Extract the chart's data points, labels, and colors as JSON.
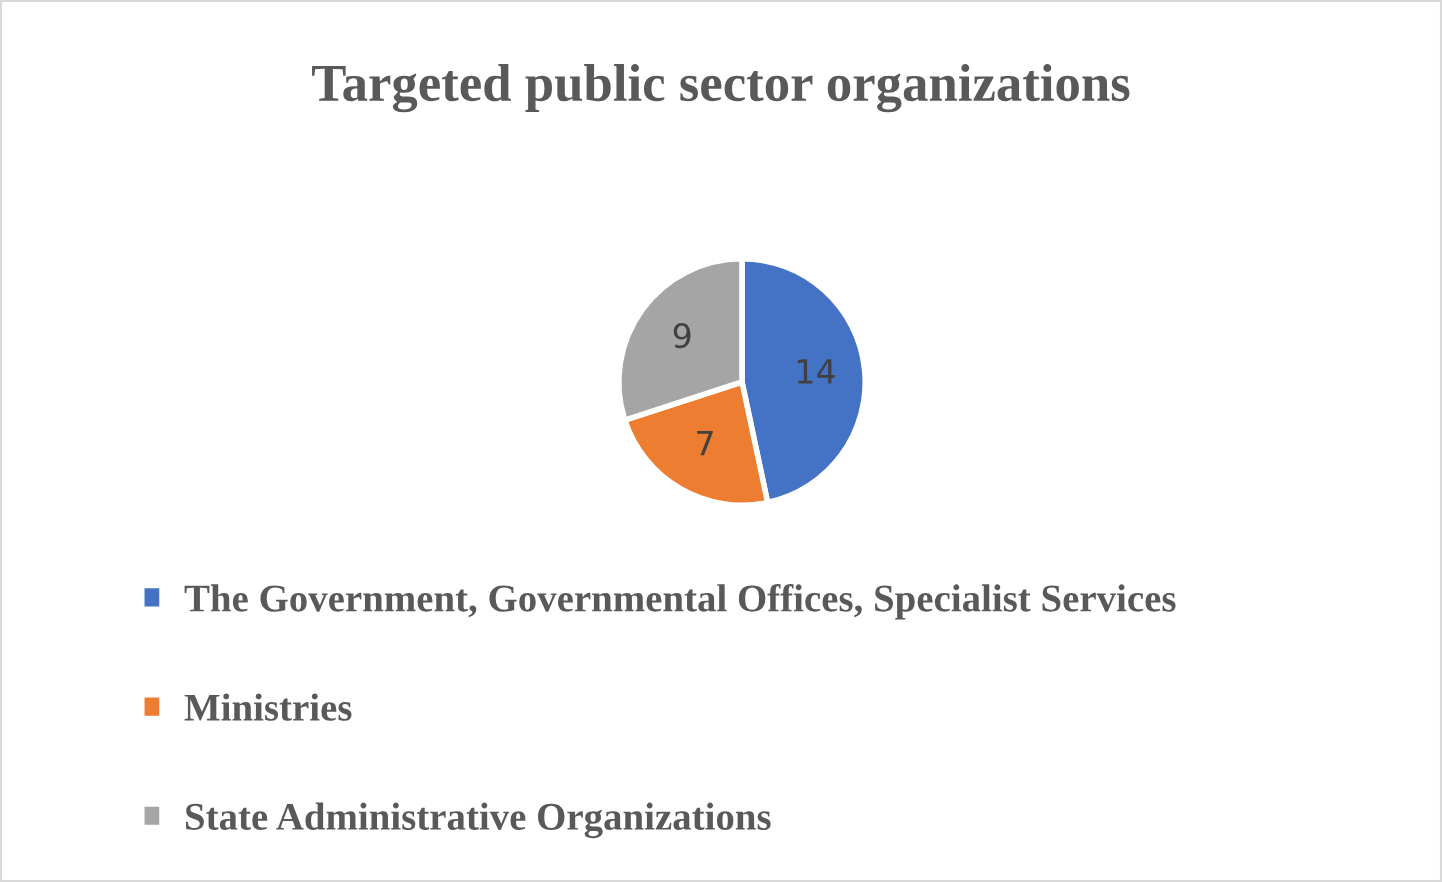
{
  "chart_data": {
    "type": "pie",
    "title": "Targeted public sector organizations",
    "categories": [
      "The Government, Governmental Offices, Specialist Services",
      "Ministries",
      "State Administrative Organizations"
    ],
    "values": [
      14,
      7,
      9
    ],
    "colors": [
      "#4472c4",
      "#ed7d31",
      "#a5a5a5"
    ],
    "data_labels": true,
    "legend": "bottom"
  }
}
